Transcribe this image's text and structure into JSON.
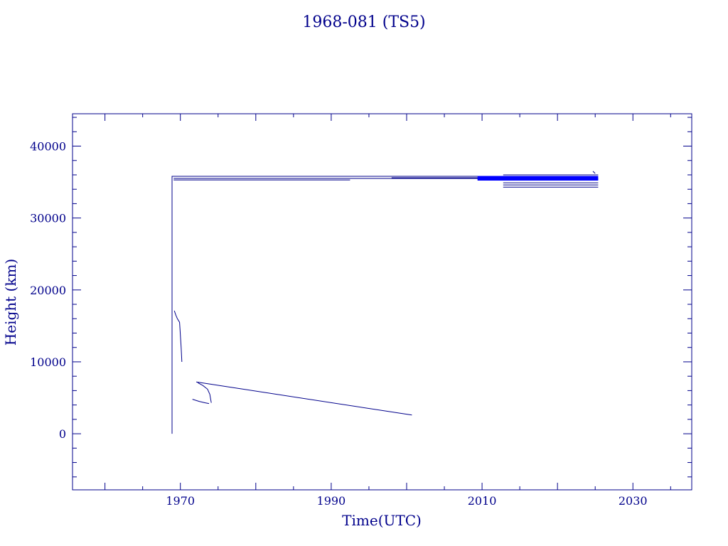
{
  "chart_data": {
    "type": "line",
    "title": "1968-081 (TS5)",
    "xlabel": "Time(UTC)",
    "ylabel": "Height (km)",
    "xlim": [
      1955.7,
      2037.8
    ],
    "ylim": [
      -7800,
      44500
    ],
    "xticks": [
      1970,
      1990,
      2010,
      2030
    ],
    "xtick_labels": [
      "1970",
      "1990",
      "2010",
      "2030"
    ],
    "yticks": [
      0,
      10000,
      20000,
      30000,
      40000
    ],
    "ytick_labels": [
      "0",
      "10000",
      "20000",
      "30000",
      "40000"
    ],
    "grid": false,
    "legend": "none",
    "color": "#00008b",
    "series": [
      {
        "x": [
          1968.9,
          1968.9,
          2025.3
        ],
        "y": [
          0,
          35800,
          35800
        ]
      },
      {
        "x": [
          1969.1,
          2024.8
        ],
        "y": [
          35500,
          35500
        ]
      },
      {
        "x": [
          1969.1,
          1992.5
        ],
        "y": [
          35300,
          35300
        ]
      },
      {
        "x": [
          1998.0,
          2025.0
        ],
        "y": [
          35600,
          35600
        ]
      },
      {
        "x": [
          2009.4,
          2025.4
        ],
        "y": [
          35600,
          35600
        ],
        "w": 5
      },
      {
        "x": [
          2009.4,
          2025.4
        ],
        "y": [
          35350,
          35350
        ],
        "w": 3
      },
      {
        "x": [
          2012.8,
          2025.4
        ],
        "y": [
          36000,
          36000
        ]
      },
      {
        "x": [
          2012.8,
          2025.4
        ],
        "y": [
          34900,
          34900
        ]
      },
      {
        "x": [
          2012.8,
          2025.4
        ],
        "y": [
          34600,
          34600
        ]
      },
      {
        "x": [
          2012.8,
          2025.4
        ],
        "y": [
          34300,
          34300
        ]
      },
      {
        "x": [
          2024.7,
          2025.0
        ],
        "y": [
          36500,
          36200
        ]
      },
      {
        "x": [
          1969.2,
          1969.4,
          1969.6,
          1969.9,
          1970.1,
          1970.2
        ],
        "y": [
          17100,
          16500,
          16000,
          15500,
          12000,
          10000
        ]
      },
      {
        "x": [
          1972.1,
          2000.7
        ],
        "y": [
          7200,
          2600
        ]
      },
      {
        "x": [
          1971.6,
          1972.5,
          1973.3,
          1973.8
        ],
        "y": [
          4800,
          4500,
          4300,
          4200
        ]
      },
      {
        "x": [
          1972.3,
          1973.0,
          1973.6,
          1973.9,
          1974.1
        ],
        "y": [
          7100,
          6700,
          6200,
          5500,
          4300
        ]
      }
    ]
  }
}
